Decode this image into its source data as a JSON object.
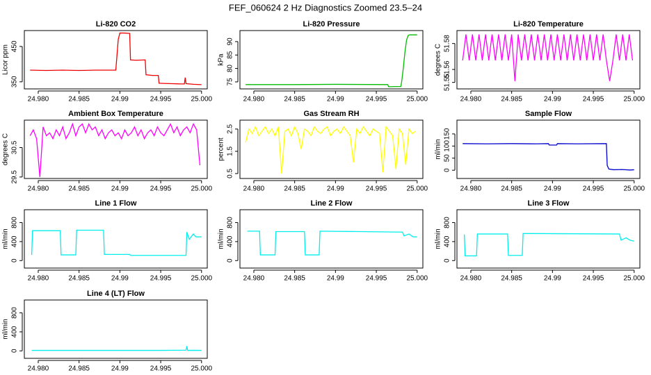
{
  "title": "FEF_060624  2 Hz Diagnostics Zoomed 23.5–24",
  "chart_data": [
    {
      "type": "line",
      "title": "Li-820 CO2",
      "y_label": "Licor ppm",
      "color": "#ee0000",
      "xlim": [
        24.9783,
        25.0007
      ],
      "xticks": [
        {
          "value": 24.98,
          "label": "24.980"
        },
        24.985,
        24.99,
        24.995,
        {
          "value": 25.0,
          "label": "25.000"
        }
      ],
      "ylim": [
        330,
        495
      ],
      "yticks": [
        350,
        450
      ],
      "x": [
        24.979,
        24.981,
        24.983,
        24.985,
        24.987,
        24.9895,
        24.9898,
        24.99,
        24.9905,
        24.9912,
        24.9913,
        24.992,
        24.9931,
        24.9932,
        24.994,
        24.9947,
        24.9948,
        24.996,
        24.9975,
        24.9979,
        24.998,
        24.9981,
        24.999,
        25.0
      ],
      "values": [
        383,
        382,
        383,
        382,
        383,
        383,
        470,
        488,
        488,
        487,
        412,
        411,
        412,
        370,
        368,
        368,
        346,
        345,
        344,
        344,
        362,
        345,
        343,
        342
      ]
    },
    {
      "type": "line",
      "title": "Li-820 Pressure",
      "y_label": "kPa",
      "color": "#00bb00",
      "xlim": [
        24.9783,
        25.0007
      ],
      "xticks": [
        {
          "value": 24.98,
          "label": "24.980"
        },
        24.985,
        24.99,
        24.995,
        {
          "value": 25.0,
          "label": "25.000"
        }
      ],
      "ylim": [
        72.4,
        94.1
      ],
      "yticks": [
        75,
        80,
        85,
        90
      ],
      "x": [
        24.979,
        24.985,
        24.99,
        24.9964,
        24.9965,
        24.998,
        24.9981,
        24.9983,
        24.9985,
        24.9987,
        24.9989,
        24.9991,
        25.0
      ],
      "values": [
        74,
        74,
        74.1,
        74,
        73.2,
        73.3,
        75,
        80,
        86,
        90.5,
        92.3,
        92.5,
        92.5
      ]
    },
    {
      "type": "line",
      "title": "Li-820 Temperature",
      "y_label": "degrees C",
      "color": "#ff00ff",
      "xlim": [
        24.9783,
        25.0007
      ],
      "xticks": [
        {
          "value": 24.98,
          "label": "24.980"
        },
        24.985,
        24.99,
        24.995,
        {
          "value": 25.0,
          "label": "25.000"
        }
      ],
      "ylim": [
        51.545,
        51.59
      ],
      "yticks": [
        51.55,
        51.56,
        51.58
      ],
      "x": [
        24.979,
        24.9794,
        24.9798,
        24.9802,
        24.9806,
        24.981,
        24.9814,
        24.9818,
        24.9822,
        24.9826,
        24.983,
        24.9834,
        24.9838,
        24.9842,
        24.9846,
        24.985,
        24.9854,
        24.9858,
        24.9862,
        24.9866,
        24.987,
        24.9874,
        24.9878,
        24.9882,
        24.9886,
        24.989,
        24.9894,
        24.9898,
        24.9902,
        24.9906,
        24.991,
        24.9914,
        24.9918,
        24.9922,
        24.9926,
        24.993,
        24.9934,
        24.9938,
        24.9942,
        24.9946,
        24.995,
        24.9954,
        24.9958,
        24.9962,
        24.9966,
        24.997,
        24.9974,
        24.9978,
        24.9982,
        24.9986,
        24.999,
        24.9994,
        24.9998
      ],
      "values": [
        51.567,
        51.587,
        51.567,
        51.587,
        51.567,
        51.587,
        51.567,
        51.587,
        51.567,
        51.587,
        51.567,
        51.587,
        51.567,
        51.587,
        51.567,
        51.587,
        51.551,
        51.587,
        51.567,
        51.587,
        51.567,
        51.587,
        51.567,
        51.587,
        51.567,
        51.587,
        51.567,
        51.587,
        51.567,
        51.587,
        51.567,
        51.587,
        51.567,
        51.587,
        51.567,
        51.587,
        51.567,
        51.587,
        51.567,
        51.587,
        51.567,
        51.587,
        51.567,
        51.587,
        51.567,
        51.551,
        51.567,
        51.587,
        51.567,
        51.587,
        51.567,
        51.587,
        51.567
      ]
    },
    {
      "type": "line",
      "title": "Ambient Box Temperature",
      "y_label": "degrees C",
      "color": "#ff00ff",
      "xlim": [
        24.9783,
        25.0007
      ],
      "xticks": [
        {
          "value": 24.98,
          "label": "24.980"
        },
        24.985,
        24.99,
        24.995,
        {
          "value": 25.0,
          "label": "25.000"
        }
      ],
      "ylim": [
        29.45,
        31.43
      ],
      "yticks": [
        29.5,
        30.5
      ],
      "x": [
        24.979,
        24.9794,
        24.9798,
        24.9802,
        24.9806,
        24.981,
        24.9814,
        24.9818,
        24.9822,
        24.9826,
        24.983,
        24.9834,
        24.9838,
        24.9842,
        24.9846,
        24.985,
        24.9854,
        24.9858,
        24.9862,
        24.9866,
        24.987,
        24.9874,
        24.9878,
        24.9882,
        24.9886,
        24.989,
        24.9894,
        24.9898,
        24.9902,
        24.9906,
        24.991,
        24.9914,
        24.9918,
        24.9922,
        24.9926,
        24.993,
        24.9934,
        24.9938,
        24.9942,
        24.9946,
        24.995,
        24.9954,
        24.9958,
        24.9962,
        24.9966,
        24.997,
        24.9974,
        24.9978,
        24.9982,
        24.9986,
        24.999,
        24.9994,
        24.9998
      ],
      "values": [
        30.9,
        31.1,
        30.8,
        29.5,
        31.2,
        30.9,
        31.0,
        30.8,
        31.1,
        30.9,
        31.2,
        30.8,
        31.0,
        31.3,
        30.9,
        31.2,
        31.3,
        31.0,
        31.3,
        31.1,
        31.2,
        30.9,
        31.1,
        30.8,
        31.0,
        31.1,
        30.9,
        31.0,
        30.8,
        31.1,
        30.9,
        31.0,
        31.2,
        30.9,
        31.1,
        30.8,
        31.0,
        31.1,
        30.9,
        31.2,
        31.0,
        30.9,
        31.1,
        31.3,
        31.0,
        31.2,
        30.9,
        31.1,
        31.2,
        31.0,
        31.3,
        31.1,
        29.9
      ]
    },
    {
      "type": "line",
      "title": "Gas Stream RH",
      "y_label": "percent",
      "color": "#ffff00",
      "xlim": [
        24.9783,
        25.0007
      ],
      "xticks": [
        {
          "value": 24.98,
          "label": "24.980"
        },
        24.985,
        24.99,
        24.995,
        {
          "value": 25.0,
          "label": "25.000"
        }
      ],
      "ylim": [
        0.28,
        2.9
      ],
      "yticks": [
        0.5,
        1.5,
        2.5
      ],
      "x": [
        24.979,
        24.9794,
        24.9798,
        24.9802,
        24.9806,
        24.981,
        24.9814,
        24.9818,
        24.9822,
        24.9826,
        24.983,
        24.9834,
        24.9838,
        24.9842,
        24.9846,
        24.985,
        24.9854,
        24.9858,
        24.9862,
        24.9866,
        24.987,
        24.9874,
        24.9878,
        24.9882,
        24.9886,
        24.989,
        24.9894,
        24.9898,
        24.9902,
        24.9906,
        24.991,
        24.9914,
        24.9918,
        24.9922,
        24.9926,
        24.993,
        24.9934,
        24.9938,
        24.9942,
        24.9946,
        24.995,
        24.9954,
        24.9958,
        24.9962,
        24.9966,
        24.997,
        24.9974,
        24.9978,
        24.9982,
        24.9986,
        24.999,
        24.9994,
        24.9998
      ],
      "values": [
        1.9,
        2.5,
        2.3,
        2.6,
        2.2,
        2.4,
        2.6,
        2.3,
        2.5,
        2.2,
        2.6,
        0.5,
        2.4,
        2.5,
        2.2,
        2.6,
        2.3,
        1.6,
        2.5,
        2.4,
        2.2,
        2.6,
        2.4,
        2.3,
        2.5,
        2.6,
        2.2,
        2.4,
        2.5,
        2.3,
        2.6,
        2.4,
        2.2,
        1.0,
        2.5,
        2.3,
        2.6,
        2.4,
        2.2,
        2.5,
        2.4,
        2.3,
        0.55,
        2.6,
        2.4,
        2.2,
        0.7,
        2.5,
        2.3,
        0.9,
        2.5,
        2.3,
        2.4
      ]
    },
    {
      "type": "line",
      "title": "Sample Flow",
      "y_label": "ml/min",
      "color": "#0000cc",
      "xlim": [
        24.9783,
        25.0007
      ],
      "xticks": [
        {
          "value": 24.98,
          "label": "24.980"
        },
        24.985,
        24.99,
        24.995,
        {
          "value": 25.0,
          "label": "25.000"
        }
      ],
      "ylim": [
        -34,
        207
      ],
      "yticks": [
        0,
        50,
        100,
        150
      ],
      "x": [
        24.979,
        24.982,
        24.985,
        24.988,
        24.9895,
        24.9896,
        24.9905,
        24.9906,
        24.993,
        24.9966,
        24.9967,
        24.9969,
        24.9975,
        24.9985,
        24.9995,
        25.0
      ],
      "values": [
        110,
        109,
        110,
        109,
        110,
        104,
        104,
        110,
        109,
        110,
        20,
        5,
        2,
        3,
        1,
        2
      ]
    },
    {
      "type": "line",
      "title": "Line 1 Flow",
      "y_label": "ml/min",
      "color": "#00eeee",
      "xlim": [
        24.9783,
        25.0007
      ],
      "xticks": [
        {
          "value": 24.98,
          "label": "24.980"
        },
        24.985,
        24.99,
        24.995,
        {
          "value": 25.0,
          "label": "25.000"
        }
      ],
      "ylim": [
        -157,
        1071
      ],
      "yticks": [
        0,
        400,
        800
      ],
      "x": [
        24.9792,
        24.9793,
        24.9827,
        24.9828,
        24.9846,
        24.9847,
        24.988,
        24.9881,
        24.9912,
        24.9913,
        24.9981,
        24.9982,
        24.9985,
        24.999,
        24.9993,
        25.0
      ],
      "values": [
        120,
        630,
        630,
        120,
        120,
        640,
        640,
        130,
        130,
        110,
        110,
        600,
        450,
        560,
        500,
        500
      ]
    },
    {
      "type": "line",
      "title": "Line 2 Flow",
      "y_label": "ml/min",
      "color": "#00eeee",
      "xlim": [
        24.9783,
        25.0007
      ],
      "xticks": [
        {
          "value": 24.98,
          "label": "24.980"
        },
        24.985,
        24.99,
        24.995,
        {
          "value": 25.0,
          "label": "25.000"
        }
      ],
      "ylim": [
        -157,
        1071
      ],
      "yticks": [
        0,
        400,
        800
      ],
      "x": [
        24.9792,
        24.9807,
        24.9808,
        24.9826,
        24.9827,
        24.9862,
        24.9863,
        24.988,
        24.9881,
        24.9982,
        24.9984,
        24.999,
        24.9995,
        25.0
      ],
      "values": [
        620,
        620,
        120,
        120,
        610,
        610,
        120,
        120,
        620,
        600,
        520,
        560,
        500,
        500
      ]
    },
    {
      "type": "line",
      "title": "Line 3 Flow",
      "y_label": "ml/min",
      "color": "#00eeee",
      "xlim": [
        24.9783,
        25.0007
      ],
      "xticks": [
        {
          "value": 24.98,
          "label": "24.980"
        },
        24.985,
        24.99,
        24.995,
        {
          "value": 25.0,
          "label": "25.000"
        }
      ],
      "ylim": [
        -157,
        1071
      ],
      "yticks": [
        0,
        400,
        800
      ],
      "x": [
        24.9792,
        24.9793,
        24.9807,
        24.9808,
        24.9845,
        24.9846,
        24.9863,
        24.9864,
        24.9982,
        24.9984,
        24.999,
        24.9995,
        25.0
      ],
      "values": [
        550,
        100,
        100,
        560,
        560,
        110,
        110,
        570,
        560,
        430,
        480,
        430,
        410
      ]
    },
    {
      "type": "line",
      "title": "Line 4 (LT) Flow",
      "y_label": "ml/min",
      "color": "#00eeee",
      "xlim": [
        24.9783,
        25.0007
      ],
      "xticks": [
        {
          "value": 24.98,
          "label": "24.980"
        },
        24.985,
        24.99,
        24.995,
        {
          "value": 25.0,
          "label": "25.000"
        }
      ],
      "ylim": [
        -157,
        1071
      ],
      "yticks": [
        0,
        400,
        800
      ],
      "x": [
        24.9792,
        24.995,
        24.9981,
        24.9982,
        24.9983,
        24.999,
        25.0
      ],
      "values": [
        10,
        10,
        15,
        100,
        10,
        12,
        10
      ]
    }
  ]
}
